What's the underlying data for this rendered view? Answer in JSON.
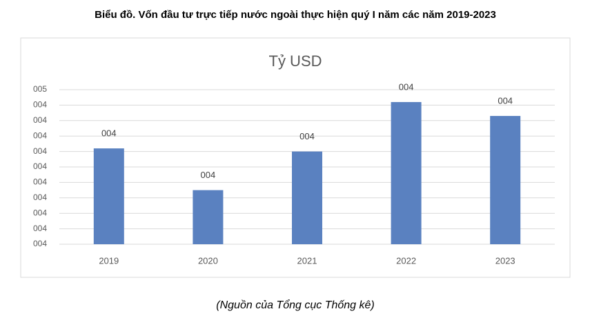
{
  "page_title": "Biểu đồ. Vốn đầu tư trực tiếp nước ngoài thực hiện quý I năm các năm 2019-2023",
  "source": "(Nguồn của Tổng cục Thống kê)",
  "chart_data": {
    "type": "bar",
    "title": "Tỷ USD",
    "categories": [
      "2019",
      "2020",
      "2021",
      "2022",
      "2023"
    ],
    "values": [
      4.12,
      3.85,
      4.1,
      4.42,
      4.33
    ],
    "value_labels": [
      "004",
      "004",
      "004",
      "004",
      "004"
    ],
    "color": "#5a81c0",
    "ylim": [
      3.5,
      4.5
    ],
    "yticks": [
      {
        "value": 3.5,
        "label": "004"
      },
      {
        "value": 3.6,
        "label": "004"
      },
      {
        "value": 3.7,
        "label": "004"
      },
      {
        "value": 3.8,
        "label": "004"
      },
      {
        "value": 3.9,
        "label": "004"
      },
      {
        "value": 4.0,
        "label": "004"
      },
      {
        "value": 4.1,
        "label": "004"
      },
      {
        "value": 4.2,
        "label": "004"
      },
      {
        "value": 4.3,
        "label": "004"
      },
      {
        "value": 4.4,
        "label": "004"
      },
      {
        "value": 4.5,
        "label": "005"
      }
    ],
    "grid": true
  }
}
